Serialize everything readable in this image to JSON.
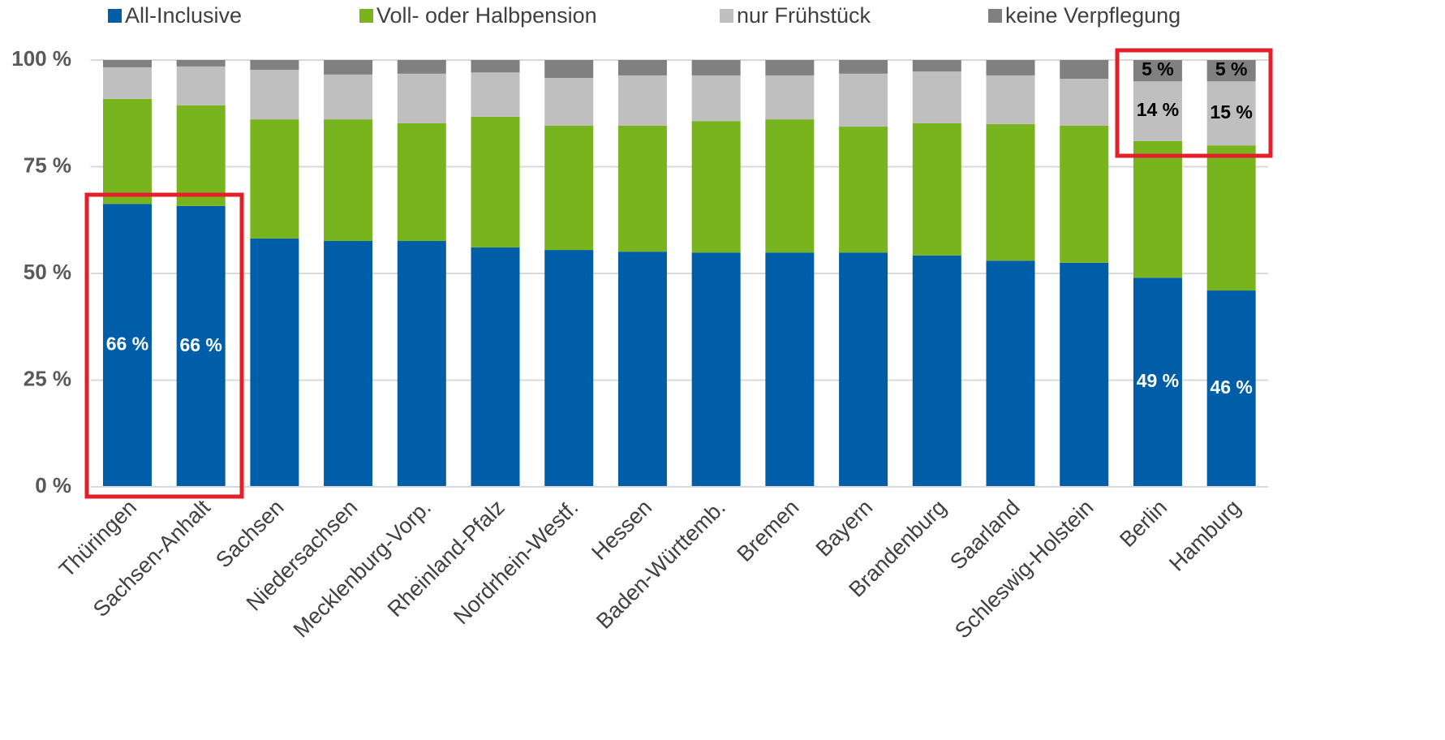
{
  "chart_data": {
    "type": "stacked_bar",
    "categories": [
      "Thüringen",
      "Sachsen-Anhalt",
      "Sachsen",
      "Niedersachsen",
      "Mecklenburg-Vorp.",
      "Rheinland-Pfalz",
      "Nordrhein-Westf.",
      "Hessen",
      "Baden-Württemb.",
      "Bremen",
      "Bayern",
      "Brandenburg",
      "Saarland",
      "Schleswig-Holstein",
      "Berlin",
      "Hamburg"
    ],
    "series": [
      {
        "name": "All-Inclusive",
        "color": "#005ea8",
        "label_color": "#ffffff",
        "values": [
          66.3,
          65.8,
          58.2,
          57.6,
          57.6,
          56.1,
          55.5,
          55.1,
          54.9,
          54.9,
          54.9,
          54.2,
          53.0,
          52.5,
          49,
          46
        ],
        "value_labels": [
          "66 %",
          "66 %",
          null,
          null,
          null,
          null,
          null,
          null,
          null,
          null,
          null,
          null,
          null,
          null,
          "49 %",
          "46 %"
        ]
      },
      {
        "name": "Voll- oder Halbpension",
        "color": "#78b41e",
        "label_color": "#000000",
        "values": [
          24.6,
          23.6,
          27.9,
          28.5,
          27.6,
          30.6,
          29.1,
          29.5,
          30.8,
          31.2,
          29.5,
          31.0,
          32.0,
          32.1,
          32,
          34
        ]
      },
      {
        "name": "nur Frühstück",
        "color": "#bfbfbf",
        "label_color": "#000000",
        "values": [
          7.4,
          9.1,
          11.6,
          10.5,
          11.6,
          10.4,
          11.2,
          11.8,
          10.7,
          10.3,
          12.4,
          12.1,
          11.4,
          11.0,
          14,
          15
        ],
        "value_labels": [
          null,
          null,
          null,
          null,
          null,
          null,
          null,
          null,
          null,
          null,
          null,
          null,
          null,
          null,
          "14 %",
          "15 %"
        ]
      },
      {
        "name": "keine Verpflegung",
        "color": "#808080",
        "label_color": "#000000",
        "values": [
          1.7,
          1.5,
          2.3,
          3.4,
          3.2,
          2.9,
          4.2,
          3.6,
          3.6,
          3.6,
          3.2,
          2.7,
          3.6,
          4.4,
          5,
          5
        ],
        "value_labels": [
          null,
          null,
          null,
          null,
          null,
          null,
          null,
          null,
          null,
          null,
          null,
          null,
          null,
          null,
          "5 %",
          "5 %"
        ]
      }
    ],
    "ylim": [
      0,
      100
    ],
    "yticks": [
      {
        "value": 0,
        "label": "0 %"
      },
      {
        "value": 25,
        "label": "25 %"
      },
      {
        "value": 50,
        "label": "50 %"
      },
      {
        "value": 75,
        "label": "75 %"
      },
      {
        "value": 100,
        "label": "100 %"
      }
    ],
    "grid": true,
    "legend": "top"
  }
}
